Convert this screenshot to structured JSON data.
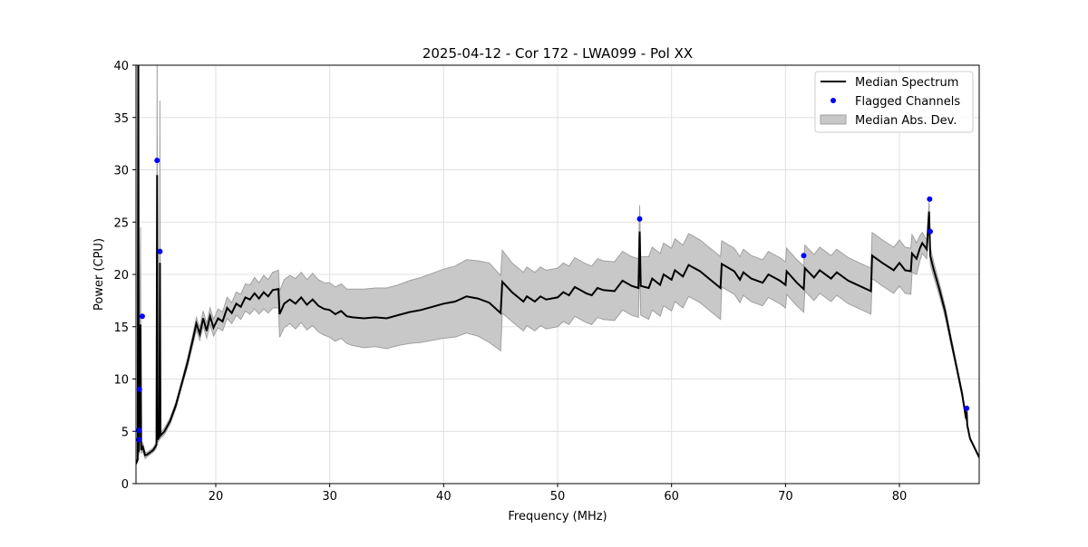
{
  "chart_data": {
    "type": "line",
    "title": "2025-04-12 - Cor 172 - LWA099 - Pol XX",
    "xlabel": "Frequency (MHz)",
    "ylabel": "Power (CPU)",
    "xlim": [
      13,
      87
    ],
    "ylim": [
      0,
      40
    ],
    "xticks": [
      20,
      30,
      40,
      50,
      60,
      70,
      80
    ],
    "yticks": [
      0,
      5,
      10,
      15,
      20,
      25,
      30,
      35,
      40
    ],
    "grid": true,
    "legend_position": "top-right",
    "legend": [
      "Median Spectrum",
      "Flagged Channels",
      "Median Abs. Dev."
    ],
    "colors": {
      "median": "#000000",
      "flagged": "#0000ff",
      "mad": "#c8c8c8",
      "mad_edge": "#a0a0a0"
    },
    "median_series_fields": [
      "frequency_mhz",
      "median",
      "mad"
    ],
    "median_series": [
      [
        13.0,
        1.9,
        0.1
      ],
      [
        13.15,
        2.3,
        0.2
      ],
      [
        13.2,
        45,
        0.5
      ],
      [
        13.25,
        3.0,
        0.3
      ],
      [
        13.4,
        15.2,
        9.3
      ],
      [
        13.45,
        3.2,
        0.3
      ],
      [
        13.6,
        3.5,
        0.4
      ],
      [
        13.8,
        2.7,
        0.3
      ],
      [
        14.0,
        2.8,
        0.2
      ],
      [
        14.5,
        3.2,
        0.2
      ],
      [
        14.8,
        3.7,
        0.3
      ],
      [
        14.85,
        29.5,
        11
      ],
      [
        14.9,
        4.2,
        0.3
      ],
      [
        15.05,
        4.5,
        0.3
      ],
      [
        15.1,
        21.1,
        15.5
      ],
      [
        15.15,
        4.6,
        0.3
      ],
      [
        15.5,
        5.0,
        0.3
      ],
      [
        16.0,
        6.0,
        0.3
      ],
      [
        16.5,
        7.5,
        0.3
      ],
      [
        17.0,
        9.5,
        0.3
      ],
      [
        17.5,
        11.5,
        0.4
      ],
      [
        18.0,
        13.8,
        0.5
      ],
      [
        18.3,
        15.3,
        0.6
      ],
      [
        18.6,
        14.3,
        0.6
      ],
      [
        18.9,
        15.8,
        0.7
      ],
      [
        19.2,
        14.6,
        0.7
      ],
      [
        19.5,
        16.0,
        0.8
      ],
      [
        19.8,
        14.9,
        0.8
      ],
      [
        20.2,
        15.8,
        0.9
      ],
      [
        20.6,
        15.5,
        0.9
      ],
      [
        21.0,
        16.8,
        1.0
      ],
      [
        21.4,
        16.3,
        1.0
      ],
      [
        21.8,
        17.2,
        1.1
      ],
      [
        22.2,
        16.9,
        1.2
      ],
      [
        22.6,
        17.8,
        1.3
      ],
      [
        23.0,
        17.6,
        1.4
      ],
      [
        23.4,
        18.2,
        1.5
      ],
      [
        23.8,
        17.7,
        1.5
      ],
      [
        24.2,
        18.3,
        1.6
      ],
      [
        24.6,
        17.9,
        1.6
      ],
      [
        25.0,
        18.5,
        1.7
      ],
      [
        25.5,
        18.6,
        1.8
      ],
      [
        25.6,
        16.2,
        2.2
      ],
      [
        26.0,
        17.2,
        2.3
      ],
      [
        26.5,
        17.6,
        2.3
      ],
      [
        27.0,
        17.2,
        2.4
      ],
      [
        27.5,
        17.8,
        2.4
      ],
      [
        28.0,
        17.1,
        2.4
      ],
      [
        28.5,
        17.6,
        2.5
      ],
      [
        29.0,
        17.0,
        2.5
      ],
      [
        29.5,
        16.7,
        2.5
      ],
      [
        30.0,
        16.6,
        2.6
      ],
      [
        30.5,
        16.2,
        2.6
      ],
      [
        31.0,
        16.5,
        2.6
      ],
      [
        31.5,
        16.0,
        2.6
      ],
      [
        32.0,
        15.9,
        2.7
      ],
      [
        33.0,
        15.8,
        2.8
      ],
      [
        34.0,
        15.9,
        2.8
      ],
      [
        35.0,
        15.8,
        2.9
      ],
      [
        36.0,
        16.1,
        2.9
      ],
      [
        37.0,
        16.4,
        3.0
      ],
      [
        38.0,
        16.6,
        3.1
      ],
      [
        39.0,
        16.9,
        3.2
      ],
      [
        40.0,
        17.2,
        3.3
      ],
      [
        41.0,
        17.4,
        3.4
      ],
      [
        42.0,
        17.9,
        3.5
      ],
      [
        43.0,
        17.7,
        3.6
      ],
      [
        44.0,
        17.3,
        3.8
      ],
      [
        45.0,
        16.3,
        3.6
      ],
      [
        45.15,
        19.3,
        3.0
      ],
      [
        46.0,
        18.3,
        2.8
      ],
      [
        47.0,
        17.4,
        2.8
      ],
      [
        47.3,
        17.9,
        2.8
      ],
      [
        48.0,
        17.4,
        2.8
      ],
      [
        48.5,
        17.9,
        2.8
      ],
      [
        49.0,
        17.6,
        2.8
      ],
      [
        50.0,
        17.8,
        2.8
      ],
      [
        50.5,
        18.3,
        2.8
      ],
      [
        51.0,
        18.0,
        2.8
      ],
      [
        51.5,
        18.8,
        2.8
      ],
      [
        52.0,
        18.5,
        2.8
      ],
      [
        52.5,
        18.2,
        2.8
      ],
      [
        53.0,
        18.0,
        2.8
      ],
      [
        53.5,
        18.7,
        2.8
      ],
      [
        54.0,
        18.5,
        2.8
      ],
      [
        55.0,
        18.4,
        2.8
      ],
      [
        55.7,
        19.4,
        2.8
      ],
      [
        56.5,
        18.9,
        2.8
      ],
      [
        57.1,
        18.7,
        2.8
      ],
      [
        57.2,
        24.1,
        2.5
      ],
      [
        57.3,
        18.9,
        2.8
      ],
      [
        58.0,
        18.7,
        3.0
      ],
      [
        58.3,
        19.6,
        3.0
      ],
      [
        59.0,
        19.0,
        3.0
      ],
      [
        59.3,
        20.0,
        3.0
      ],
      [
        60.0,
        19.5,
        3.0
      ],
      [
        60.3,
        20.4,
        3.0
      ],
      [
        61.0,
        19.8,
        3.0
      ],
      [
        61.5,
        20.9,
        3.0
      ],
      [
        62.5,
        20.3,
        3.0
      ],
      [
        63.5,
        19.4,
        3.0
      ],
      [
        64.3,
        18.7,
        3.0
      ],
      [
        64.4,
        21.0,
        2.2
      ],
      [
        65.5,
        20.3,
        2.2
      ],
      [
        66.0,
        19.5,
        2.2
      ],
      [
        66.3,
        20.2,
        2.2
      ],
      [
        67.0,
        19.6,
        2.2
      ],
      [
        68.0,
        19.2,
        2.2
      ],
      [
        68.5,
        20.0,
        2.2
      ],
      [
        69.5,
        19.4,
        2.2
      ],
      [
        70.0,
        19.0,
        2.2
      ],
      [
        70.1,
        20.3,
        2.2
      ],
      [
        71.0,
        19.2,
        2.2
      ],
      [
        71.6,
        18.6,
        2.2
      ],
      [
        71.7,
        20.6,
        2.2
      ],
      [
        72.5,
        19.7,
        2.2
      ],
      [
        73.0,
        20.4,
        2.2
      ],
      [
        74.0,
        19.6,
        2.2
      ],
      [
        74.5,
        20.2,
        2.2
      ],
      [
        75.5,
        19.4,
        2.2
      ],
      [
        76.5,
        18.9,
        2.2
      ],
      [
        77.5,
        18.4,
        2.2
      ],
      [
        77.6,
        21.8,
        2.2
      ],
      [
        78.5,
        21.1,
        2.2
      ],
      [
        79.5,
        20.4,
        2.2
      ],
      [
        80.0,
        21.1,
        2.2
      ],
      [
        80.5,
        20.4,
        2.2
      ],
      [
        81.0,
        20.3,
        2.2
      ],
      [
        81.1,
        22.0,
        1.8
      ],
      [
        81.5,
        21.5,
        1.5
      ],
      [
        81.8,
        22.5,
        1.2
      ],
      [
        82.0,
        23.0,
        1.0
      ],
      [
        82.4,
        22.4,
        0.9
      ],
      [
        82.6,
        26.0,
        0.9
      ],
      [
        82.7,
        21.8,
        0.8
      ],
      [
        83.0,
        20.5,
        0.7
      ],
      [
        83.5,
        18.6,
        0.6
      ],
      [
        84.0,
        16.5,
        0.5
      ],
      [
        84.5,
        13.8,
        0.4
      ],
      [
        85.0,
        11.2,
        0.3
      ],
      [
        85.5,
        8.6,
        0.3
      ],
      [
        85.85,
        6.2,
        0.2
      ],
      [
        85.9,
        6.9,
        0.2
      ],
      [
        85.95,
        5.6,
        0.2
      ],
      [
        86.2,
        4.3,
        0.1
      ],
      [
        86.6,
        3.4,
        0.1
      ],
      [
        87.0,
        2.5,
        0.1
      ]
    ],
    "flagged_channels_fields": [
      "frequency_mhz",
      "power"
    ],
    "flagged_channels": [
      [
        13.25,
        4.2
      ],
      [
        13.25,
        5.1
      ],
      [
        13.3,
        9.0
      ],
      [
        13.55,
        16.0
      ],
      [
        14.85,
        30.9
      ],
      [
        15.1,
        22.2
      ],
      [
        57.2,
        25.3
      ],
      [
        71.6,
        21.8
      ],
      [
        82.65,
        27.2
      ],
      [
        82.7,
        24.1
      ],
      [
        85.9,
        7.2
      ]
    ]
  }
}
